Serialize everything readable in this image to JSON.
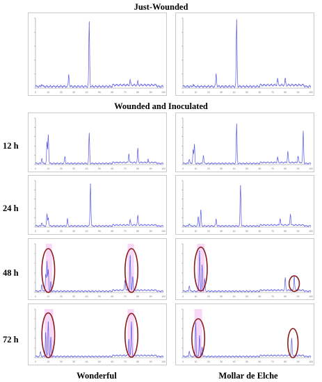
{
  "headings": {
    "top": "Just-Wounded",
    "middle": "Wounded and Inoculated"
  },
  "row_labels": [
    "12 h",
    "24 h",
    "48 h",
    "72 h"
  ],
  "column_labels": [
    "Wonderful",
    "Mollar de Elche"
  ],
  "colors": {
    "trace": "#5a5ae6",
    "highlight": "#f2b8f0",
    "ellipse": "#8b1a1a",
    "frame": "#c9c9c9"
  },
  "chart_data": [
    {
      "type": "line",
      "panel": "just-wounded-wonderful",
      "x_range": [
        0,
        100
      ],
      "y_range": [
        0,
        1
      ],
      "x_ticks": [
        "0",
        "10",
        "20",
        "30",
        "40",
        "50",
        "60",
        "70",
        "80",
        "90",
        "100"
      ],
      "peaks": [
        {
          "x": 5,
          "y": 0.04
        },
        {
          "x": 26,
          "y": 0.17
        },
        {
          "x": 42,
          "y": 0.92
        },
        {
          "x": 74,
          "y": 0.08
        },
        {
          "x": 80,
          "y": 0.05
        }
      ]
    },
    {
      "type": "line",
      "panel": "just-wounded-mollar",
      "x_range": [
        0,
        100
      ],
      "y_range": [
        0,
        1
      ],
      "x_ticks": [
        "0",
        "10",
        "20",
        "30",
        "40",
        "50",
        "60",
        "70",
        "80",
        "90",
        "100"
      ],
      "peaks": [
        {
          "x": 8,
          "y": 0.03
        },
        {
          "x": 26,
          "y": 0.18
        },
        {
          "x": 42,
          "y": 0.95
        },
        {
          "x": 74,
          "y": 0.1
        },
        {
          "x": 80,
          "y": 0.09
        }
      ]
    },
    {
      "type": "line",
      "panel": "12h-wonderful",
      "x_range": [
        0,
        100
      ],
      "y_range": [
        0,
        1
      ],
      "x_ticks": [
        "0",
        "10",
        "20",
        "30",
        "40",
        "50",
        "60",
        "70",
        "80",
        "90",
        "100"
      ],
      "peaks": [
        {
          "x": 5,
          "y": 0.12
        },
        {
          "x": 9,
          "y": 0.45
        },
        {
          "x": 10,
          "y": 0.62
        },
        {
          "x": 23,
          "y": 0.15
        },
        {
          "x": 42,
          "y": 0.65
        },
        {
          "x": 73,
          "y": 0.2
        },
        {
          "x": 80,
          "y": 0.3
        },
        {
          "x": 88,
          "y": 0.06
        }
      ]
    },
    {
      "type": "line",
      "panel": "12h-mollar",
      "x_range": [
        0,
        100
      ],
      "y_range": [
        0,
        1
      ],
      "x_ticks": [
        "0",
        "10",
        "20",
        "30",
        "40",
        "50",
        "60",
        "70",
        "80",
        "90",
        "100"
      ],
      "peaks": [
        {
          "x": 5,
          "y": 0.1
        },
        {
          "x": 8,
          "y": 0.3
        },
        {
          "x": 9,
          "y": 0.4
        },
        {
          "x": 16,
          "y": 0.18
        },
        {
          "x": 42,
          "y": 0.85
        },
        {
          "x": 74,
          "y": 0.12
        },
        {
          "x": 82,
          "y": 0.25
        },
        {
          "x": 90,
          "y": 0.15
        },
        {
          "x": 94,
          "y": 0.67
        }
      ]
    },
    {
      "type": "line",
      "panel": "24h-wonderful",
      "x_range": [
        0,
        100
      ],
      "y_range": [
        0,
        1
      ],
      "x_ticks": [
        "0",
        "10",
        "20",
        "30",
        "40",
        "50",
        "60",
        "70",
        "80",
        "90",
        "100"
      ],
      "peaks": [
        {
          "x": 5,
          "y": 0.08
        },
        {
          "x": 9,
          "y": 0.25
        },
        {
          "x": 10,
          "y": 0.18
        },
        {
          "x": 25,
          "y": 0.15
        },
        {
          "x": 43,
          "y": 0.92
        },
        {
          "x": 74,
          "y": 0.12
        },
        {
          "x": 80,
          "y": 0.2
        }
      ]
    },
    {
      "type": "line",
      "panel": "24h-mollar",
      "x_range": [
        0,
        100
      ],
      "y_range": [
        0,
        1
      ],
      "x_ticks": [
        "0",
        "10",
        "20",
        "30",
        "40",
        "50",
        "60",
        "70",
        "80",
        "90",
        "100"
      ],
      "peaks": [
        {
          "x": 5,
          "y": 0.06
        },
        {
          "x": 12,
          "y": 0.2
        },
        {
          "x": 14,
          "y": 0.35
        },
        {
          "x": 26,
          "y": 0.15
        },
        {
          "x": 45,
          "y": 0.88
        },
        {
          "x": 76,
          "y": 0.15
        },
        {
          "x": 84,
          "y": 0.25
        }
      ]
    },
    {
      "type": "line",
      "panel": "48h-wonderful",
      "x_range": [
        0,
        100
      ],
      "y_range": [
        0,
        1
      ],
      "x_ticks": [
        "0",
        "10",
        "20",
        "30",
        "40",
        "50",
        "60",
        "70",
        "80",
        "90",
        "100"
      ],
      "peaks": [
        {
          "x": 5,
          "y": 0.15
        },
        {
          "x": 8,
          "y": 0.35
        },
        {
          "x": 9,
          "y": 0.6
        },
        {
          "x": 10,
          "y": 0.45
        },
        {
          "x": 12,
          "y": 0.2
        },
        {
          "x": 70,
          "y": 0.22
        },
        {
          "x": 74,
          "y": 0.72
        },
        {
          "x": 76,
          "y": 0.3
        }
      ],
      "highlights": [
        {
          "x_from": 8,
          "x_to": 13
        },
        {
          "x_from": 72,
          "x_to": 77
        }
      ],
      "ellipses": [
        {
          "cx": 10,
          "cy": 0.45,
          "rx": 5,
          "ry": 0.45
        },
        {
          "cx": 75,
          "cy": 0.45,
          "rx": 5,
          "ry": 0.45
        }
      ]
    },
    {
      "type": "line",
      "panel": "48h-mollar",
      "x_range": [
        0,
        100
      ],
      "y_range": [
        0,
        1
      ],
      "x_ticks": [
        "0",
        "10",
        "20",
        "30",
        "40",
        "50",
        "60",
        "70",
        "80",
        "90",
        "100"
      ],
      "peaks": [
        {
          "x": 5,
          "y": 0.12
        },
        {
          "x": 13,
          "y": 0.85
        },
        {
          "x": 15,
          "y": 0.55
        },
        {
          "x": 17,
          "y": 0.25
        },
        {
          "x": 80,
          "y": 0.25
        },
        {
          "x": 87,
          "y": 0.3
        }
      ],
      "highlights": [
        {
          "x_from": 11,
          "x_to": 17
        }
      ],
      "ellipses": [
        {
          "cx": 14,
          "cy": 0.48,
          "rx": 5,
          "ry": 0.45
        },
        {
          "cx": 87,
          "cy": 0.18,
          "rx": 4,
          "ry": 0.16
        }
      ]
    },
    {
      "type": "line",
      "panel": "72h-wonderful",
      "x_range": [
        0,
        100
      ],
      "y_range": [
        0,
        1
      ],
      "x_ticks": [
        "0",
        "10",
        "20",
        "30",
        "40",
        "50",
        "60",
        "70",
        "80",
        "90",
        "100"
      ],
      "peaks": [
        {
          "x": 4,
          "y": 0.1
        },
        {
          "x": 8,
          "y": 0.5
        },
        {
          "x": 10,
          "y": 0.72
        },
        {
          "x": 12,
          "y": 0.4
        },
        {
          "x": 73,
          "y": 0.35
        },
        {
          "x": 75,
          "y": 0.7
        }
      ],
      "highlights": [
        {
          "x_from": 7,
          "x_to": 14
        },
        {
          "x_from": 72,
          "x_to": 77
        }
      ],
      "ellipses": [
        {
          "cx": 10,
          "cy": 0.46,
          "rx": 5,
          "ry": 0.46
        },
        {
          "cx": 75,
          "cy": 0.46,
          "rx": 5,
          "ry": 0.45
        }
      ]
    },
    {
      "type": "line",
      "panel": "72h-mollar",
      "x_range": [
        0,
        100
      ],
      "y_range": [
        0,
        1
      ],
      "x_ticks": [
        "0",
        "10",
        "20",
        "30",
        "40",
        "50",
        "60",
        "70",
        "80",
        "90",
        "100"
      ],
      "peaks": [
        {
          "x": 5,
          "y": 0.12
        },
        {
          "x": 10,
          "y": 0.7
        },
        {
          "x": 13,
          "y": 0.45
        },
        {
          "x": 15,
          "y": 0.2
        },
        {
          "x": 85,
          "y": 0.35
        }
      ],
      "highlights": [
        {
          "x_from": 9,
          "x_to": 15
        }
      ],
      "ellipses": [
        {
          "cx": 12,
          "cy": 0.4,
          "rx": 5,
          "ry": 0.4
        },
        {
          "cx": 86,
          "cy": 0.3,
          "rx": 4,
          "ry": 0.3
        }
      ]
    }
  ]
}
